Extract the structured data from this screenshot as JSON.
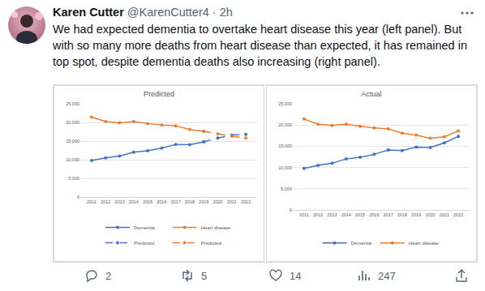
{
  "tweet": {
    "name": "Karen Cutter",
    "handle": "@KarenCutter4",
    "separator": "·",
    "time": "2h",
    "text": "We had expected dementia to overtake heart disease this year (left panel). But with so many more deaths from heart disease than expected, it has remained in top spot, despite dementia deaths also increasing (right panel).",
    "replies": 2,
    "retweets": 5,
    "likes": 14,
    "views": 247
  },
  "chart_data": [
    {
      "type": "line",
      "title": "Predicted",
      "categories": [
        "2011",
        "2012",
        "2013",
        "2014",
        "2015",
        "2016",
        "2017",
        "2018",
        "2019",
        "2020",
        "2021",
        "2022"
      ],
      "series": [
        {
          "name": "Dementia",
          "color": "#4472c4",
          "marker": "circle",
          "line_style": "solid",
          "values": [
            9800,
            10500,
            11000,
            12000,
            12400,
            13100,
            14100,
            14000,
            14800,
            null,
            null,
            null
          ]
        },
        {
          "name": "Heart disease",
          "color": "#ed7d31",
          "marker": "circle",
          "line_style": "solid",
          "values": [
            21400,
            20200,
            19900,
            20200,
            19700,
            19300,
            19100,
            18100,
            17600,
            null,
            null,
            null
          ]
        },
        {
          "name": "Predicted",
          "color": "#4472c4",
          "marker": "circle",
          "line_style": "dashed",
          "values": [
            null,
            null,
            null,
            null,
            null,
            null,
            null,
            null,
            14800,
            15800,
            16600,
            16800
          ]
        },
        {
          "name": "Predicted",
          "color": "#ed7d31",
          "marker": "circle",
          "line_style": "dashed",
          "values": [
            null,
            null,
            null,
            null,
            null,
            null,
            null,
            null,
            17600,
            16900,
            16300,
            15800
          ]
        }
      ],
      "ylim": [
        0,
        25000
      ],
      "yticks": [
        0,
        {
          "value": 5000,
          "label": "5,000"
        },
        {
          "value": 10000,
          "label": "10,000"
        },
        {
          "value": 15000,
          "label": "15,000"
        },
        {
          "value": 20000,
          "label": "20,000"
        },
        {
          "value": 25000,
          "label": "25,000"
        }
      ],
      "grid": true,
      "legend": "bottom"
    },
    {
      "type": "line",
      "title": "Actual",
      "categories": [
        "2011",
        "2012",
        "2013",
        "2014",
        "2015",
        "2016",
        "2017",
        "2018",
        "2019",
        "2020",
        "2021",
        "2022"
      ],
      "series": [
        {
          "name": "Dementia",
          "color": "#4472c4",
          "marker": "circle",
          "line_style": "solid",
          "values": [
            9800,
            10500,
            11000,
            12000,
            12400,
            13100,
            14100,
            14000,
            14800,
            14700,
            15800,
            17300
          ]
        },
        {
          "name": "Heart disease",
          "color": "#ed7d31",
          "marker": "circle",
          "line_style": "solid",
          "values": [
            21400,
            20200,
            19900,
            20200,
            19700,
            19300,
            19100,
            18100,
            17600,
            16900,
            17200,
            18600
          ]
        }
      ],
      "ylim": [
        0,
        25000
      ],
      "yticks": [
        0,
        {
          "value": 5000,
          "label": "5,000"
        },
        {
          "value": 10000,
          "label": "10,000"
        },
        {
          "value": 15000,
          "label": "15,000"
        },
        {
          "value": 20000,
          "label": "20,000"
        },
        {
          "value": 25000,
          "label": "25,000"
        }
      ],
      "grid": true,
      "legend": "bottom"
    }
  ]
}
